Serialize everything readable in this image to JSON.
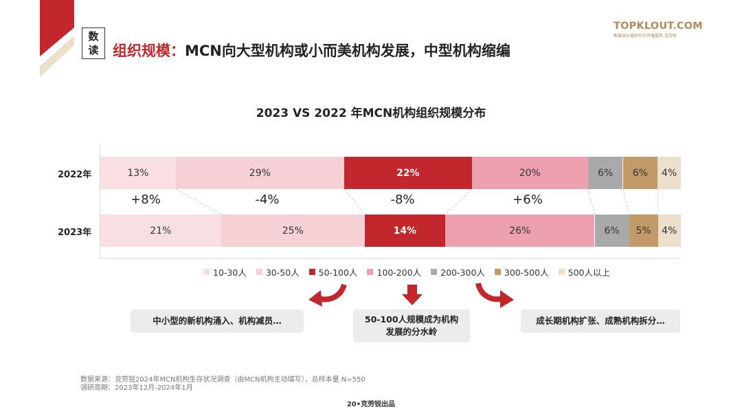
{
  "header": {
    "badge": [
      "数",
      "读"
    ],
    "headline_accent": "组织规模：",
    "headline_rest": "MCN向大型机构或小而美机构发展，中型机构缩编",
    "brand_name": "TOPKLOUT.COM",
    "brand_sub": "新媒体价值研究与传播服务 克劳锐"
  },
  "colors": {
    "brand_red": "#c1272d",
    "gold": "#b08b57",
    "segments": [
      "#f9dfe2",
      "#f5d1d5",
      "#c1272d",
      "#eca0b0",
      "#a9a9a9",
      "#c19a67",
      "#ecdfcb"
    ]
  },
  "chart_data": {
    "type": "bar",
    "stacked": true,
    "orientation": "horizontal",
    "title": "2023 VS 2022 年MCN机构组织规模分布",
    "categories": [
      "2022年",
      "2023年"
    ],
    "series": [
      {
        "name": "10-30人",
        "values": [
          13,
          21
        ],
        "labels": [
          "13%",
          "21%"
        ]
      },
      {
        "name": "30-50人",
        "values": [
          29,
          25
        ],
        "labels": [
          "29%",
          "25%"
        ]
      },
      {
        "name": "50-100人",
        "values": [
          22,
          14
        ],
        "labels": [
          "22%",
          "14%"
        ]
      },
      {
        "name": "100-200人",
        "values": [
          20,
          26
        ],
        "labels": [
          "20%",
          "26%"
        ]
      },
      {
        "name": "200-300人",
        "values": [
          6,
          6
        ],
        "labels": [
          "6%",
          "6%"
        ]
      },
      {
        "name": "300-500人",
        "values": [
          6,
          5
        ],
        "labels": [
          "6%",
          "5%"
        ]
      },
      {
        "name": "500人以上",
        "values": [
          4,
          4
        ],
        "labels": [
          "4%",
          "4%"
        ]
      }
    ],
    "differences": [
      "+8%",
      "-4%",
      "-8%",
      "+6%"
    ],
    "legend_position": "bottom",
    "grid": false
  },
  "notes": {
    "left": "中小型的新机构涌入、机构减员…",
    "center": "50-100人规模成为机构发展的分水岭",
    "right": "成长期机构扩张、成熟机构拆分…"
  },
  "source": {
    "line1": "数据来源：克劳锐2024年MCN机构生存状况调查（由MCN机构主动填写），总样本量 N=550",
    "line2": "调研周期：2023年12月-2024年1月"
  },
  "footer": "20•克劳锐出品"
}
